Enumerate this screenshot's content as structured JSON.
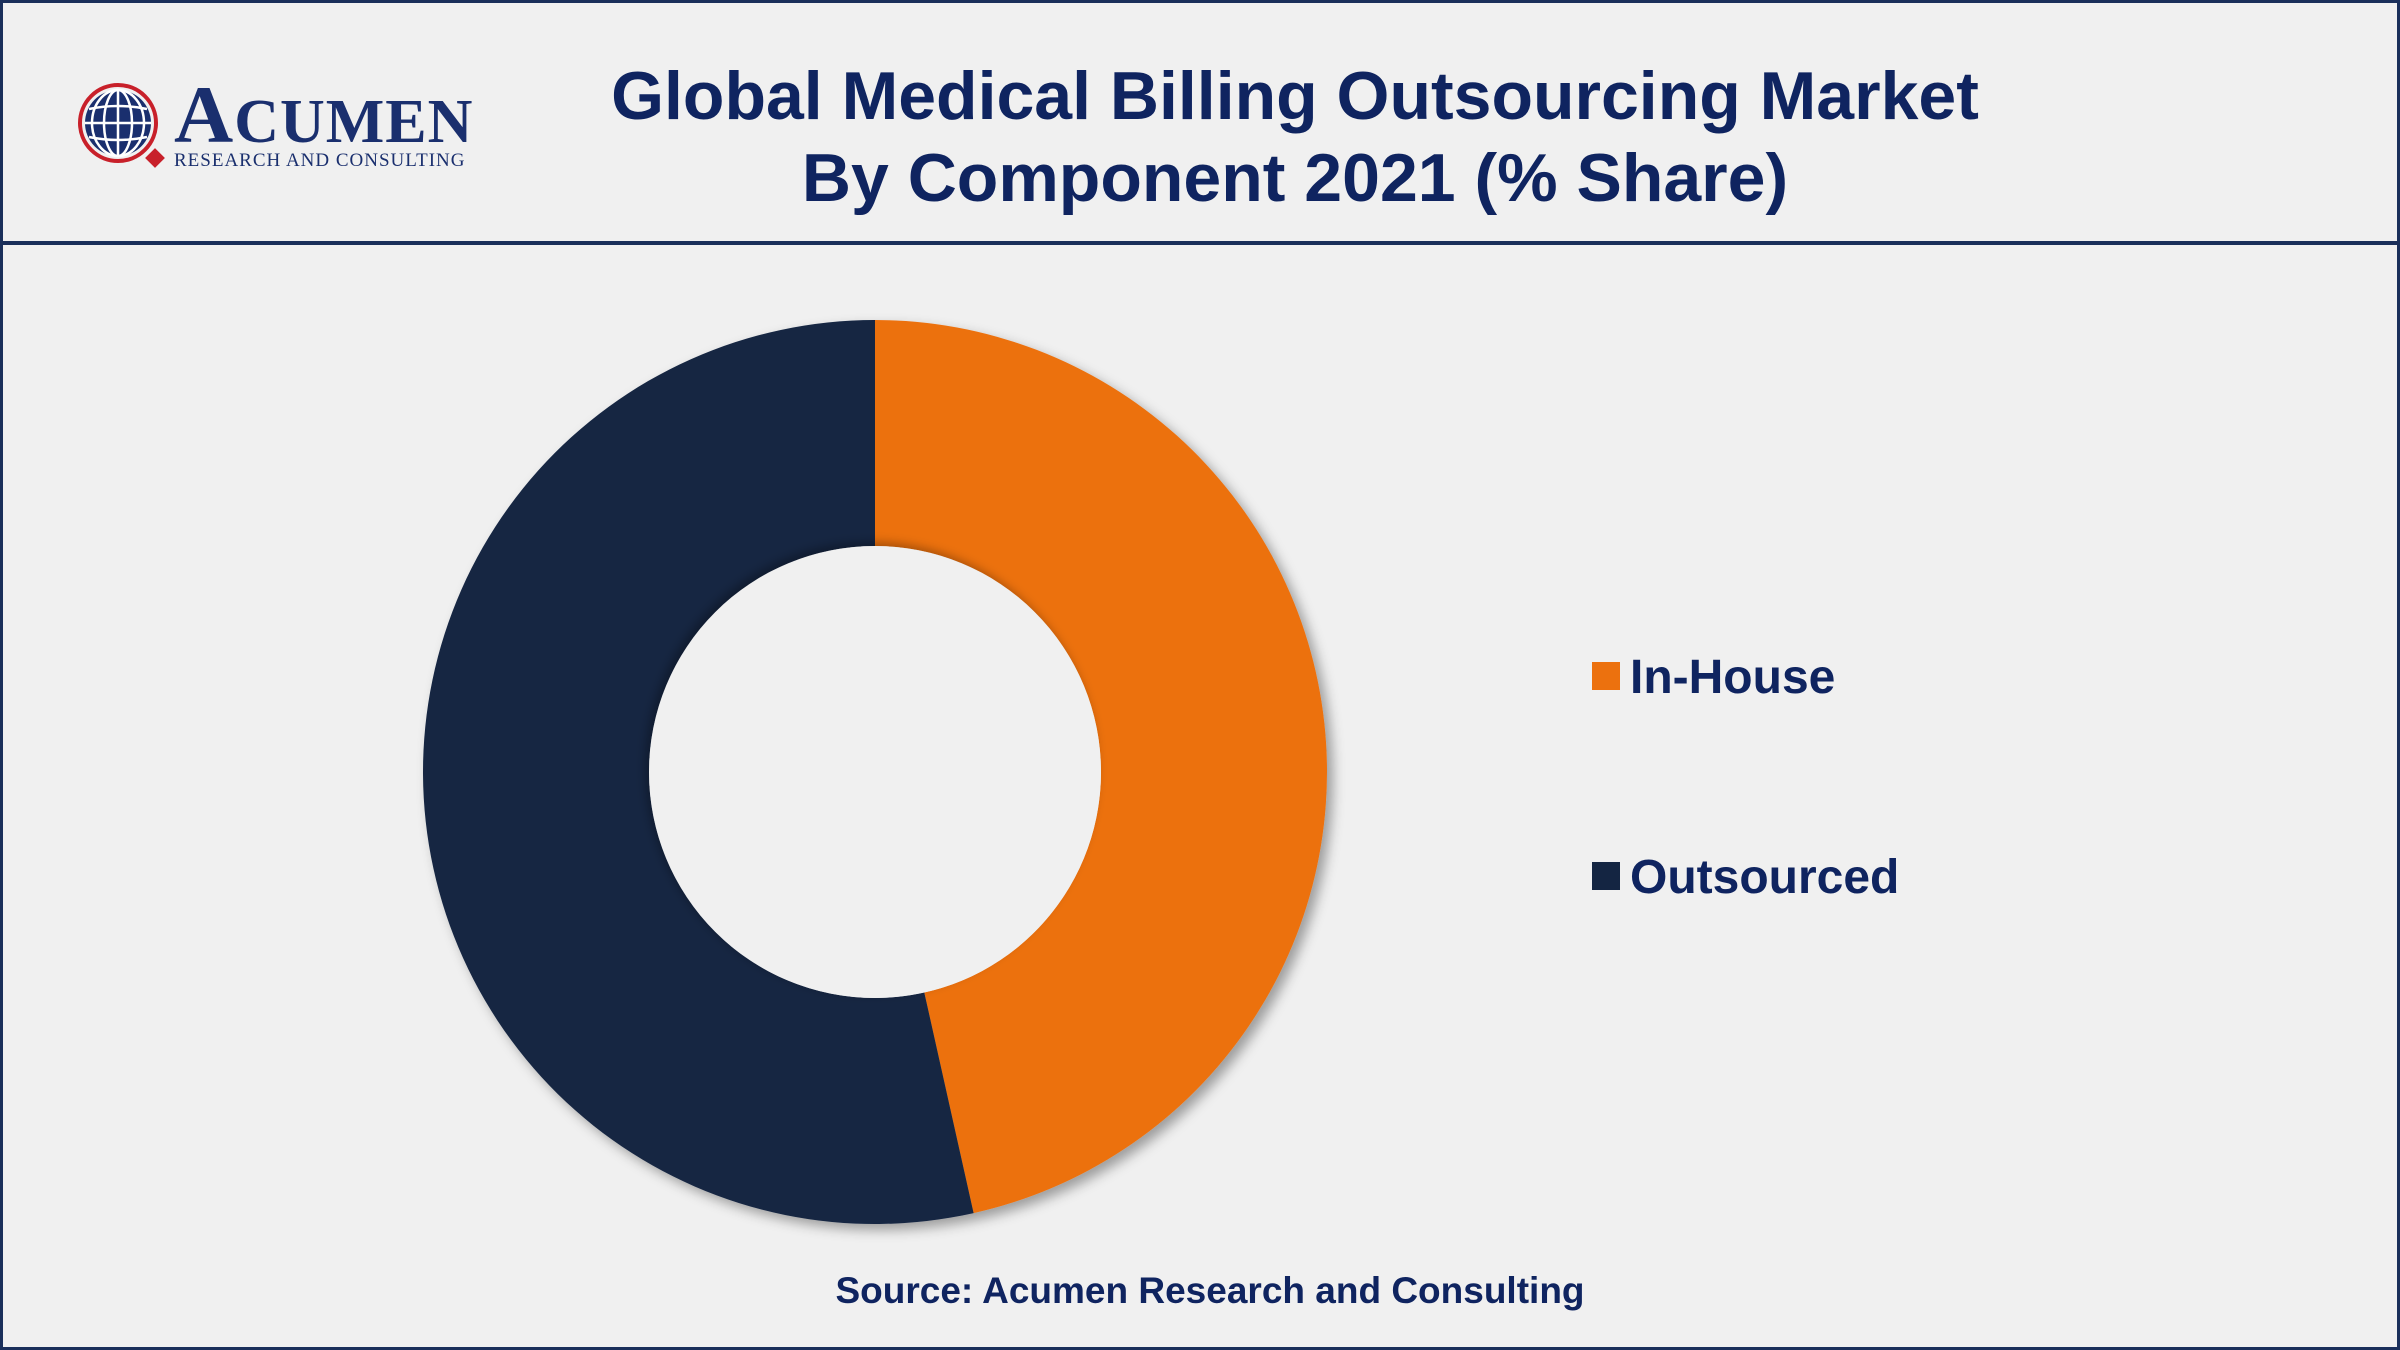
{
  "logo": {
    "name_first": "A",
    "name_rest": "CUMEN",
    "tagline": "RESEARCH AND CONSULTING"
  },
  "header": {
    "title_line1": "Global Medical Billing Outsourcing Market",
    "title_line2": "By Component 2021 (% Share)"
  },
  "chart_data": {
    "type": "pie",
    "variant": "donut",
    "title": "Global Medical Billing Outsourcing Market By Component 2021 (% Share)",
    "categories": [
      "In-House",
      "Outsourced"
    ],
    "values": [
      46.5,
      53.5
    ],
    "colors": [
      "#ec710e",
      "#142542"
    ],
    "legend_position": "right"
  },
  "footer": {
    "source": "Source: Acumen Research and Consulting"
  }
}
